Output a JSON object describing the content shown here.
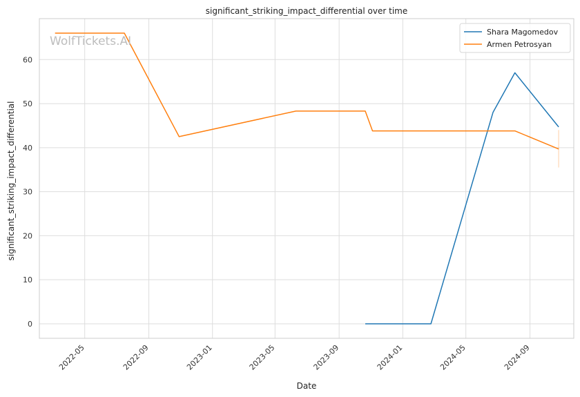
{
  "chart_data": {
    "type": "line",
    "title": "significant_striking_impact_differential over time",
    "xlabel": "Date",
    "ylabel": "significant_striking_impact_differential",
    "watermark": "WolfTickets.AI",
    "x_axis_type": "date",
    "xlim": [
      "2022-02-03",
      "2024-11-24"
    ],
    "ylim": [
      -3.3,
      69.3
    ],
    "x_ticks": [
      "2022-05-01",
      "2022-09-01",
      "2023-01-01",
      "2023-05-01",
      "2023-09-01",
      "2024-01-01",
      "2024-05-01",
      "2024-09-01"
    ],
    "x_tick_labels": [
      "2022-05",
      "2022-09",
      "2023-01",
      "2023-05",
      "2023-09",
      "2024-01",
      "2024-05",
      "2024-09"
    ],
    "y_ticks": [
      0,
      10,
      20,
      30,
      40,
      50,
      60
    ],
    "grid": true,
    "legend_position": "top-right",
    "series": [
      {
        "name": "Shara Magomedov",
        "color": "#1f77b4",
        "points": [
          {
            "x": "2023-10-21",
            "y": 0
          },
          {
            "x": "2024-02-24",
            "y": 0
          },
          {
            "x": "2024-06-22",
            "y": 48
          },
          {
            "x": "2024-08-03",
            "y": 57
          },
          {
            "x": "2024-10-26",
            "y": 44.7
          }
        ]
      },
      {
        "name": "Armen Petrosyan",
        "color": "#ff7f0e",
        "points": [
          {
            "x": "2022-03-05",
            "y": 66
          },
          {
            "x": "2022-07-16",
            "y": 66
          },
          {
            "x": "2022-10-29",
            "y": 42.5
          },
          {
            "x": "2023-06-10",
            "y": 48.3
          },
          {
            "x": "2023-10-21",
            "y": 48.3
          },
          {
            "x": "2023-11-04",
            "y": 43.8
          },
          {
            "x": "2024-08-03",
            "y": 43.8
          },
          {
            "x": "2024-10-26",
            "y": 39.7
          }
        ],
        "error_band": {
          "x": "2024-10-26",
          "low": 35.5,
          "high": 44
        }
      }
    ]
  }
}
